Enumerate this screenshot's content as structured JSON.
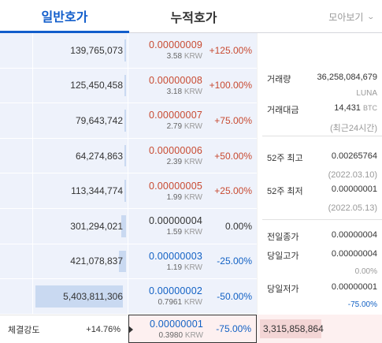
{
  "tabs": {
    "general": "일반호가",
    "cumulative": "누적호가"
  },
  "dropdown": {
    "label": "모아보기",
    "icon": "chevron-down-icon"
  },
  "rows": [
    {
      "vol": "139,765,073",
      "bar": 0.02,
      "price": "0.00000009",
      "krw": "3.58",
      "krw_unit": "KRW",
      "pct": "+125.00%",
      "dir": "up"
    },
    {
      "vol": "125,450,458",
      "bar": 0.02,
      "price": "0.00000008",
      "krw": "3.18",
      "krw_unit": "KRW",
      "pct": "+100.00%",
      "dir": "up"
    },
    {
      "vol": "79,643,742",
      "bar": 0.015,
      "price": "0.00000007",
      "krw": "2.79",
      "krw_unit": "KRW",
      "pct": "+75.00%",
      "dir": "up"
    },
    {
      "vol": "64,274,863",
      "bar": 0.012,
      "price": "0.00000006",
      "krw": "2.39",
      "krw_unit": "KRW",
      "pct": "+50.00%",
      "dir": "up"
    },
    {
      "vol": "113,344,774",
      "bar": 0.02,
      "price": "0.00000005",
      "krw": "1.99",
      "krw_unit": "KRW",
      "pct": "+25.00%",
      "dir": "up"
    },
    {
      "vol": "301,294,021",
      "bar": 0.055,
      "price": "0.00000004",
      "krw": "1.59",
      "krw_unit": "KRW",
      "pct": "0.00%",
      "dir": "flat"
    },
    {
      "vol": "421,078,837",
      "bar": 0.078,
      "price": "0.00000003",
      "krw": "1.19",
      "krw_unit": "KRW",
      "pct": "-25.00%",
      "dir": "down"
    },
    {
      "vol": "5,403,811,306",
      "bar": 1.0,
      "price": "0.00000002",
      "krw": "0.7961",
      "krw_unit": "KRW",
      "pct": "-50.00%",
      "dir": "down"
    }
  ],
  "info": {
    "volume_label": "거래량",
    "volume_value": "36,258,084,679",
    "volume_unit": "LUNA",
    "amount_label": "거래대금",
    "amount_value": "14,431",
    "amount_unit": "BTC",
    "amount_note": "(최근24시간)",
    "high52_label": "52주 최고",
    "high52_value": "0.00265764",
    "high52_date": "(2022.03.10)",
    "low52_label": "52주 최저",
    "low52_value": "0.00000001",
    "low52_date": "(2022.05.13)",
    "prev_close_label": "전일종가",
    "prev_close_value": "0.00000004",
    "day_high_label": "당일고가",
    "day_high_value": "0.00000004",
    "day_high_pct": "0.00%",
    "day_low_label": "당일저가",
    "day_low_value": "0.00000001",
    "day_low_pct": "-75.00%"
  },
  "bottom": {
    "strength_label": "체결강도",
    "strength_value": "+14.76%",
    "price": "0.00000001",
    "krw": "0.3980",
    "krw_unit": "KRW",
    "pct": "-75.00%",
    "bid_vol": "3,315,858,864"
  },
  "colors": {
    "accent": "#115dcb",
    "up": "#c84a31",
    "down": "#1261c4",
    "ask_bg": "#eef2fb",
    "bid_bg": "#fdf0f0"
  }
}
